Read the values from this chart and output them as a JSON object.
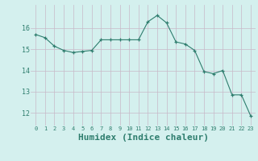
{
  "x": [
    0,
    1,
    2,
    3,
    4,
    5,
    6,
    7,
    8,
    9,
    10,
    11,
    12,
    13,
    14,
    15,
    16,
    17,
    18,
    19,
    20,
    21,
    22,
    23
  ],
  "y": [
    15.7,
    15.55,
    15.15,
    14.95,
    14.85,
    14.9,
    14.95,
    15.45,
    15.45,
    15.45,
    15.45,
    15.45,
    16.3,
    16.6,
    16.25,
    15.35,
    15.25,
    14.95,
    13.95,
    13.85,
    14.0,
    12.85,
    12.85,
    11.85
  ],
  "line_color": "#2e7d6e",
  "marker": "+",
  "marker_color": "#2e7d6e",
  "bg_color": "#d4f0ee",
  "grid_color": "#c8b8c8",
  "xlabel": "Humidex (Indice chaleur)",
  "xlabel_fontsize": 8,
  "ytick_labels": [
    "12",
    "13",
    "14",
    "15",
    "16"
  ],
  "ytick_vals": [
    12,
    13,
    14,
    15,
    16
  ],
  "xtick_vals": [
    0,
    1,
    2,
    3,
    4,
    5,
    6,
    7,
    8,
    9,
    10,
    11,
    12,
    13,
    14,
    15,
    16,
    17,
    18,
    19,
    20,
    21,
    22,
    23
  ],
  "ylim": [
    11.4,
    17.1
  ],
  "xlim": [
    -0.5,
    23.5
  ]
}
